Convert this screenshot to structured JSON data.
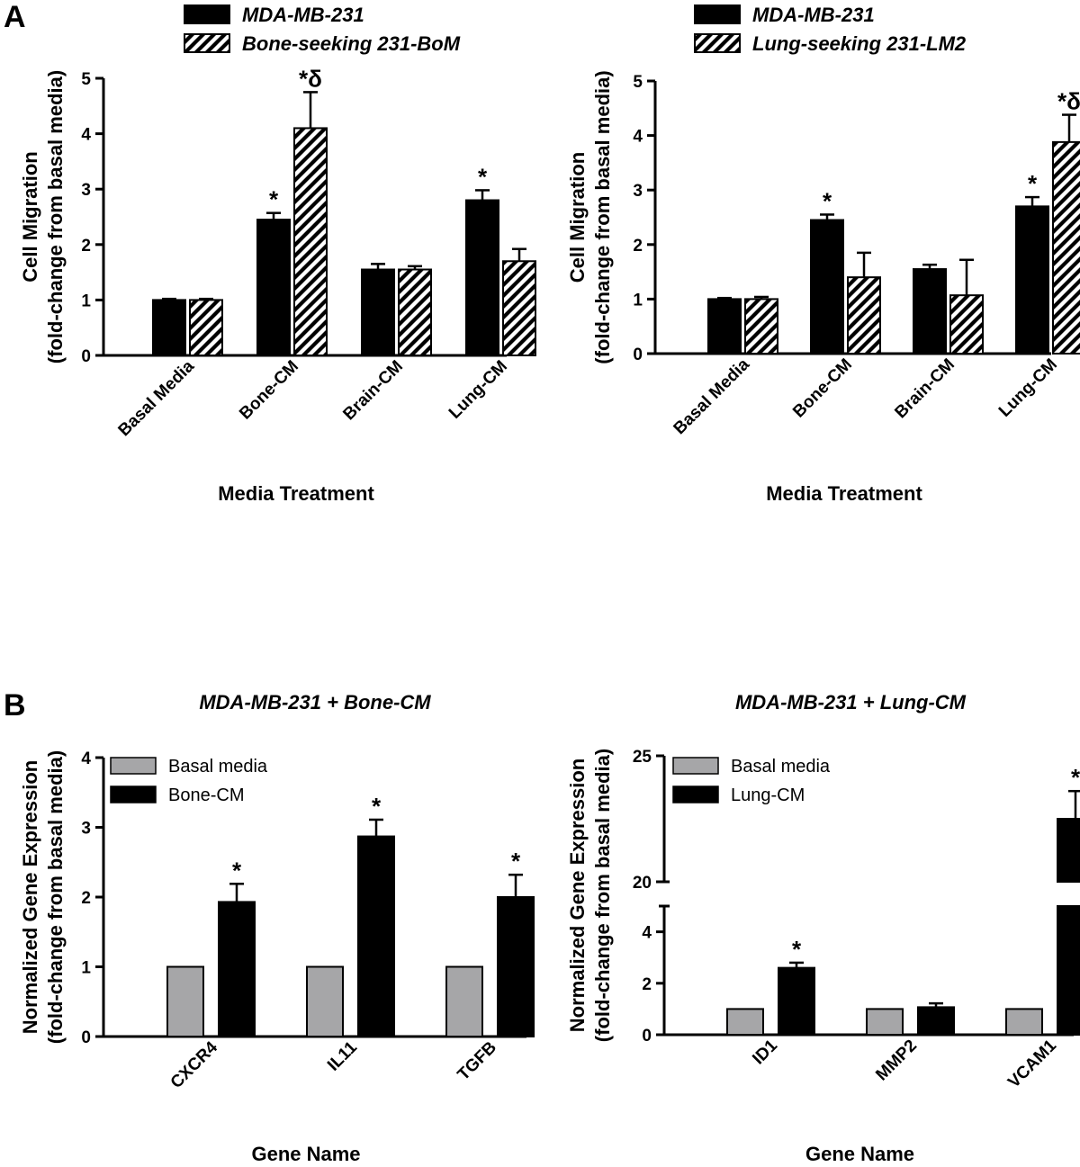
{
  "panels": {
    "a": "A",
    "b": "B"
  },
  "colors": {
    "black": "#000000",
    "gray": "#a6a6a8",
    "white": "#ffffff"
  },
  "chart_data": [
    {
      "type": "bar",
      "panel": "A",
      "title": "",
      "xlabel": "Media Treatment",
      "ylabel": "Cell Migration",
      "ylabel2": "(fold-change from basal media)",
      "ylim": [
        0,
        5
      ],
      "yticks": [
        0,
        1,
        2,
        3,
        4,
        5
      ],
      "categories": [
        "Basal Media",
        "Bone-CM",
        "Brain-CM",
        "Lung-CM"
      ],
      "legend_position": "top",
      "series": [
        {
          "name": "MDA-MB-231",
          "fill": "solid",
          "values": [
            1.0,
            2.45,
            1.55,
            2.8
          ],
          "errors": [
            0.02,
            0.12,
            0.1,
            0.18
          ],
          "labels": [
            "",
            "*",
            "",
            "*"
          ]
        },
        {
          "name": "Bone-seeking 231-BoM",
          "fill": "hatch",
          "values": [
            1.0,
            4.1,
            1.55,
            1.7
          ],
          "errors": [
            0.02,
            0.65,
            0.06,
            0.22
          ],
          "labels": [
            "",
            "*δ",
            "",
            ""
          ]
        }
      ]
    },
    {
      "type": "bar",
      "panel": "A",
      "title": "",
      "xlabel": "Media Treatment",
      "ylabel": "Cell Migration",
      "ylabel2": "(fold-change from basal media)",
      "ylim": [
        0,
        5
      ],
      "yticks": [
        0,
        1,
        2,
        3,
        4,
        5
      ],
      "categories": [
        "Basal Media",
        "Bone-CM",
        "Brain-CM",
        "Lung-CM"
      ],
      "legend_position": "top",
      "series": [
        {
          "name": "MDA-MB-231",
          "fill": "solid",
          "values": [
            1.0,
            2.45,
            1.55,
            2.7
          ],
          "errors": [
            0.02,
            0.1,
            0.08,
            0.17
          ],
          "labels": [
            "",
            "*",
            "",
            "*"
          ]
        },
        {
          "name": "Lung-seeking 231-LM2",
          "fill": "hatch",
          "values": [
            1.0,
            1.4,
            1.07,
            3.88
          ],
          "errors": [
            0.04,
            0.45,
            0.65,
            0.5
          ],
          "labels": [
            "",
            "",
            "",
            "*δ"
          ]
        }
      ]
    },
    {
      "type": "bar",
      "panel": "B",
      "title": "MDA-MB-231 + Bone-CM",
      "xlabel": "Gene Name",
      "ylabel": "Normalized Gene Expression",
      "ylabel2": "(fold-change from basal media)",
      "ylim": [
        0,
        4
      ],
      "yticks": [
        0,
        1,
        2,
        3,
        4
      ],
      "categories": [
        "CXCR4",
        "IL11",
        "TGFB"
      ],
      "legend_position": "top-left",
      "series": [
        {
          "name": "Basal media",
          "fill": "gray",
          "values": [
            1,
            1,
            1
          ],
          "errors": [
            0,
            0,
            0
          ],
          "labels": [
            "",
            "",
            ""
          ]
        },
        {
          "name": "Bone-CM",
          "fill": "solid",
          "values": [
            1.93,
            2.87,
            2.0
          ],
          "errors": [
            0.26,
            0.24,
            0.32
          ],
          "labels": [
            "*",
            "*",
            "*"
          ]
        }
      ]
    },
    {
      "type": "bar",
      "panel": "B",
      "title": "MDA-MB-231 + Lung-CM",
      "xlabel": "Gene Name",
      "ylabel": "Normalized Gene Expression",
      "ylabel2": "(fold-change from basal media)",
      "ylim": [
        0,
        25
      ],
      "axis_break": [
        5,
        20
      ],
      "yticks": [
        0,
        2,
        4,
        20,
        25
      ],
      "categories": [
        "ID1",
        "MMP2",
        "VCAM1"
      ],
      "legend_position": "top-left",
      "series": [
        {
          "name": "Basal media",
          "fill": "gray",
          "values": [
            1,
            1,
            1
          ],
          "errors": [
            0,
            0,
            0
          ],
          "labels": [
            "",
            "",
            ""
          ]
        },
        {
          "name": "Lung-CM",
          "fill": "solid",
          "values": [
            2.6,
            1.07,
            22.5
          ],
          "errors": [
            0.2,
            0.15,
            1.1
          ],
          "labels": [
            "*",
            "",
            "*"
          ]
        }
      ]
    }
  ]
}
